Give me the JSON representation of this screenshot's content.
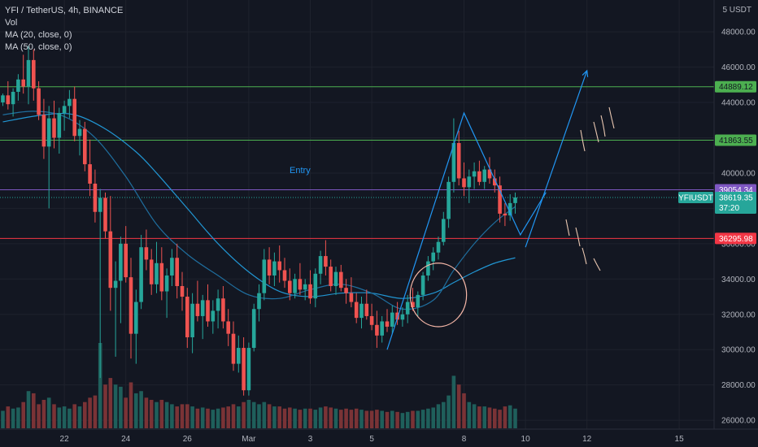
{
  "legend": {
    "symbol": "YFI / TetherUS, 4h, BINANCE",
    "vol": "Vol",
    "ma20": "MA (20, close, 0)",
    "ma50": "MA (50, close, 0)"
  },
  "colors": {
    "background": "#131722",
    "up": "#26a69a",
    "down": "#ef5350",
    "vol_up": "#1f5f5b",
    "vol_down": "#7a3336",
    "ma20": "#1f6e9e",
    "ma50": "#2196d3",
    "green_line": "#4caf50",
    "red_line": "#f23645",
    "purple_line": "#7e57c2",
    "drawing_blue": "#2196f3",
    "circle": "#f7b8a8",
    "hand_drawn": "#e8c6b0"
  },
  "chart_data": {
    "type": "candlestick",
    "currency_label": "5 USDT",
    "ylim": [
      25500,
      49800
    ],
    "y_ticks": [
      26000,
      28000,
      30000,
      32000,
      34000,
      36000,
      38000,
      40000,
      42000,
      44000,
      46000,
      48000
    ],
    "x_tick_labels": [
      {
        "label": "22",
        "index": 12
      },
      {
        "label": "24",
        "index": 24
      },
      {
        "label": "26",
        "index": 36
      },
      {
        "label": "Mar",
        "index": 48
      },
      {
        "label": "3",
        "index": 60
      },
      {
        "label": "5",
        "index": 72
      },
      {
        "label": "8",
        "index": 90
      },
      {
        "label": "10",
        "index": 102
      },
      {
        "label": "12",
        "index": 114
      },
      {
        "label": "15",
        "index": 132
      }
    ],
    "candle_count_total": 140,
    "ohlc": [
      [
        44000,
        44500,
        43800,
        44400
      ],
      [
        44400,
        45200,
        43600,
        43900
      ],
      [
        43900,
        44800,
        43200,
        44600
      ],
      [
        44600,
        45600,
        44100,
        45300
      ],
      [
        45300,
        46700,
        44500,
        44900
      ],
      [
        44900,
        47200,
        43900,
        46400
      ],
      [
        46400,
        47000,
        44100,
        44800
      ],
      [
        44800,
        45200,
        43000,
        43300
      ],
      [
        43300,
        44200,
        40800,
        41500
      ],
      [
        41500,
        43800,
        38000,
        43100
      ],
      [
        43100,
        44100,
        41400,
        42000
      ],
      [
        42000,
        43700,
        41100,
        43400
      ],
      [
        43400,
        44100,
        42400,
        43800
      ],
      [
        43800,
        44700,
        43100,
        44200
      ],
      [
        44200,
        44900,
        41800,
        42100
      ],
      [
        42100,
        43000,
        41000,
        42500
      ],
      [
        42500,
        42900,
        40100,
        40500
      ],
      [
        40500,
        41900,
        38700,
        39400
      ],
      [
        39400,
        40200,
        37200,
        37800
      ],
      [
        37800,
        39100,
        28400,
        38600
      ],
      [
        38600,
        38900,
        36300,
        36700
      ],
      [
        36700,
        38700,
        32200,
        33500
      ],
      [
        33500,
        35000,
        29600,
        33900
      ],
      [
        33900,
        36400,
        31500,
        36000
      ],
      [
        36000,
        37000,
        33800,
        34100
      ],
      [
        34100,
        35200,
        29500,
        30900
      ],
      [
        30900,
        33400,
        29200,
        32700
      ],
      [
        32700,
        36500,
        32300,
        35800
      ],
      [
        35800,
        36800,
        34500,
        35100
      ],
      [
        35100,
        35700,
        33100,
        33700
      ],
      [
        33700,
        36100,
        33200,
        34900
      ],
      [
        34900,
        35800,
        32800,
        33300
      ],
      [
        33300,
        34600,
        31800,
        34200
      ],
      [
        34200,
        35700,
        33600,
        35200
      ],
      [
        35200,
        36000,
        32900,
        33600
      ],
      [
        33600,
        34400,
        32200,
        33000
      ],
      [
        33000,
        33500,
        30100,
        30700
      ],
      [
        30700,
        33200,
        29800,
        32600
      ],
      [
        32600,
        33900,
        31600,
        31900
      ],
      [
        31900,
        33100,
        30600,
        32800
      ],
      [
        32800,
        33700,
        31300,
        31600
      ],
      [
        31600,
        32800,
        30900,
        32200
      ],
      [
        32200,
        33400,
        31200,
        32900
      ],
      [
        32900,
        33600,
        31200,
        31600
      ],
      [
        31600,
        32300,
        30200,
        30900
      ],
      [
        30900,
        31600,
        28800,
        29200
      ],
      [
        29200,
        30800,
        28700,
        30100
      ],
      [
        30100,
        30700,
        27400,
        27700
      ],
      [
        27700,
        30400,
        27400,
        30100
      ],
      [
        30100,
        32600,
        29900,
        32300
      ],
      [
        32300,
        33700,
        31600,
        33200
      ],
      [
        33200,
        35700,
        32800,
        35100
      ],
      [
        35100,
        35800,
        33700,
        34200
      ],
      [
        34200,
        35500,
        33600,
        35000
      ],
      [
        35000,
        35900,
        33800,
        34500
      ],
      [
        34500,
        35200,
        33500,
        33900
      ],
      [
        33900,
        34600,
        32800,
        33200
      ],
      [
        33200,
        34300,
        32900,
        34000
      ],
      [
        34000,
        34900,
        33100,
        33400
      ],
      [
        33400,
        34000,
        32800,
        33700
      ],
      [
        33700,
        34500,
        32600,
        32900
      ],
      [
        32900,
        34600,
        32400,
        34300
      ],
      [
        34300,
        35600,
        33700,
        35300
      ],
      [
        35300,
        36200,
        34200,
        34700
      ],
      [
        34700,
        35100,
        33300,
        33600
      ],
      [
        33600,
        34700,
        33100,
        34400
      ],
      [
        34400,
        34800,
        33300,
        33500
      ],
      [
        33500,
        34000,
        32600,
        33200
      ],
      [
        33200,
        34100,
        32400,
        32700
      ],
      [
        32700,
        33200,
        31500,
        31800
      ],
      [
        31800,
        33000,
        31200,
        32600
      ],
      [
        32600,
        33400,
        31700,
        31900
      ],
      [
        31900,
        32600,
        31100,
        31400
      ],
      [
        31400,
        32200,
        30100,
        30800
      ],
      [
        30800,
        31900,
        30400,
        31600
      ],
      [
        31600,
        32300,
        31000,
        31300
      ],
      [
        31300,
        32500,
        30900,
        32100
      ],
      [
        32100,
        32700,
        31400,
        31700
      ],
      [
        31700,
        32400,
        31300,
        32000
      ],
      [
        32000,
        33100,
        31500,
        32700
      ],
      [
        32700,
        33500,
        32200,
        32400
      ],
      [
        32400,
        33300,
        31900,
        33100
      ],
      [
        33100,
        34400,
        32800,
        34200
      ],
      [
        34200,
        35300,
        33900,
        35000
      ],
      [
        35000,
        35800,
        34500,
        35500
      ],
      [
        35500,
        36400,
        35100,
        36100
      ],
      [
        36100,
        37800,
        35900,
        37400
      ],
      [
        37400,
        39800,
        36900,
        39500
      ],
      [
        39500,
        43100,
        38900,
        41700
      ],
      [
        41700,
        42400,
        39300,
        39700
      ],
      [
        39700,
        40600,
        38700,
        39200
      ],
      [
        39200,
        40200,
        38300,
        39800
      ],
      [
        39800,
        40600,
        39100,
        40100
      ],
      [
        40100,
        40700,
        39300,
        39500
      ],
      [
        39500,
        40400,
        39100,
        40200
      ],
      [
        40200,
        40900,
        39400,
        39700
      ],
      [
        39700,
        40200,
        38900,
        39300
      ],
      [
        39300,
        39800,
        37200,
        37700
      ],
      [
        37700,
        38300,
        37000,
        37600
      ],
      [
        37600,
        38800,
        37300,
        38300
      ],
      [
        38300,
        38900,
        37700,
        38620
      ]
    ],
    "volume": [
      800,
      1000,
      900,
      950,
      1200,
      1700,
      1600,
      1100,
      1300,
      1400,
      1100,
      950,
      1000,
      900,
      1100,
      1000,
      1200,
      1400,
      1500,
      3900,
      2000,
      2300,
      2000,
      1900,
      1400,
      2100,
      1600,
      1700,
      1400,
      1300,
      1200,
      1300,
      1200,
      1100,
      1000,
      1100,
      1100,
      1000,
      900,
      950,
      900,
      850,
      900,
      950,
      1000,
      1100,
      1000,
      1200,
      1300,
      1200,
      1100,
      1200,
      1100,
      1000,
      1000,
      900,
      950,
      900,
      850,
      900,
      900,
      850,
      950,
      1000,
      950,
      900,
      850,
      900,
      850,
      900,
      850,
      800,
      800,
      850,
      800,
      750,
      800,
      750,
      700,
      750,
      800,
      800,
      850,
      900,
      950,
      1100,
      1200,
      1500,
      2400,
      2000,
      1600,
      1200,
      1100,
      1000,
      1000,
      950,
      900,
      850,
      1000,
      1050,
      900
    ],
    "ma20": [
      [
        0,
        43300
      ],
      [
        6,
        43500
      ],
      [
        12,
        43200
      ],
      [
        18,
        42000
      ],
      [
        24,
        39800
      ],
      [
        30,
        37100
      ],
      [
        36,
        35400
      ],
      [
        42,
        34200
      ],
      [
        48,
        33100
      ],
      [
        54,
        32900
      ],
      [
        60,
        33400
      ],
      [
        66,
        33700
      ],
      [
        72,
        33200
      ],
      [
        78,
        32300
      ],
      [
        84,
        32800
      ],
      [
        88,
        34500
      ],
      [
        92,
        36000
      ],
      [
        96,
        37200
      ],
      [
        100,
        38100
      ]
    ],
    "ma50": [
      [
        0,
        42900
      ],
      [
        8,
        43300
      ],
      [
        14,
        43300
      ],
      [
        20,
        42500
      ],
      [
        26,
        41200
      ],
      [
        30,
        40000
      ],
      [
        36,
        38000
      ],
      [
        42,
        36000
      ],
      [
        48,
        34400
      ],
      [
        54,
        33300
      ],
      [
        60,
        33000
      ],
      [
        66,
        33200
      ],
      [
        72,
        33200
      ],
      [
        78,
        32900
      ],
      [
        84,
        33200
      ],
      [
        88,
        33800
      ],
      [
        92,
        34400
      ],
      [
        96,
        34900
      ],
      [
        100,
        35200
      ]
    ],
    "horizontal_levels": [
      {
        "price": 44889.12,
        "label": "44889.12",
        "kind": "green"
      },
      {
        "price": 41863.55,
        "label": "41863.55",
        "kind": "green"
      },
      {
        "price": 39054.34,
        "label": "39054.34",
        "kind": "purple"
      },
      {
        "price": 36295.98,
        "label": "36295.98",
        "kind": "red"
      }
    ],
    "current": {
      "price": 38619.35,
      "symbol": "YFIUSDT",
      "price_label": "38619.35",
      "countdown": "37:20"
    },
    "annotations": {
      "entry_label": "Entry",
      "zigzag": [
        [
          75,
          30000
        ],
        [
          90,
          43400
        ],
        [
          101,
          36500
        ],
        [
          106,
          38900
        ]
      ],
      "arrow": [
        [
          102,
          35800
        ],
        [
          114,
          45800
        ]
      ],
      "entry_label_pos": [
        58,
        40000
      ],
      "circle_center": [
        85,
        33100
      ],
      "circle_radius_idx": 5.5,
      "circle_radius_price": 1800
    }
  }
}
